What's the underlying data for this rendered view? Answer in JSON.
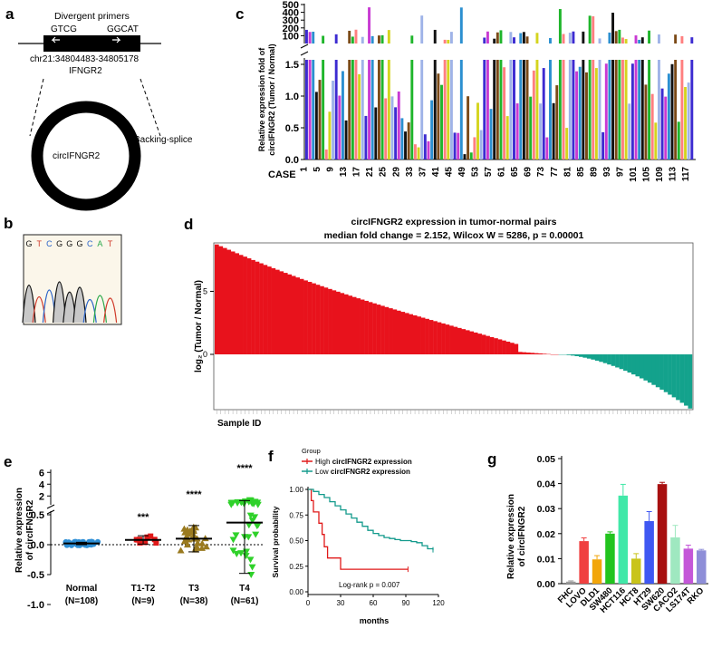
{
  "panels": {
    "a": "a",
    "b": "b",
    "c": "c",
    "d": "d",
    "e": "e",
    "f": "f",
    "g": "g"
  },
  "panel_a": {
    "primers_label": "Divergent   primers",
    "left_primer": "GTCG",
    "right_primer": "GGCAT",
    "coords": "chr21:34804483-34805178",
    "gene": "IFNGR2",
    "circle_label": "circIFNGR2",
    "splice_label": "Backing-splice"
  },
  "panel_b": {
    "sequence": [
      "G",
      "T",
      "C",
      "G",
      "G",
      "G",
      "C",
      "A",
      "T"
    ],
    "seq_colors": [
      "#111111",
      "#d03a2a",
      "#2a63c8",
      "#111111",
      "#111111",
      "#111111",
      "#2a63c8",
      "#2aa84a",
      "#d03a2a"
    ]
  },
  "chart_data": [
    {
      "id": "c",
      "type": "bar",
      "title": "",
      "xlabel": "CASE",
      "ylabel": "Relative expression fold of circIFNGR2 (Tumor / Normal)",
      "ylim_low": [
        0,
        1.5
      ],
      "ylim_high": [
        0,
        500
      ],
      "yticks_low": [
        "0.0",
        "0.5",
        "1.0",
        "1.5"
      ],
      "yticks_high": [
        "100",
        "200",
        "300",
        "400",
        "500"
      ],
      "xticks": [
        "1",
        "5",
        "9",
        "13",
        "17",
        "21",
        "25",
        "29",
        "33",
        "37",
        "41",
        "45",
        "49",
        "53",
        "57",
        "61",
        "65",
        "69",
        "73",
        "77",
        "81",
        "85",
        "89",
        "93",
        "97",
        "101",
        "105",
        "109",
        "113",
        "117"
      ],
      "n_cases": 118,
      "palette": [
        "#3c2bd1",
        "#d4d41e",
        "#1fb52b",
        "#7a1f2a",
        "#111111",
        "#c83ad3",
        "#9fb3e8",
        "#f3f08a",
        "#ff7f7f",
        "#7b4a17",
        "#2b8fd0",
        "#d8d8d8"
      ]
    },
    {
      "id": "d",
      "type": "bar",
      "title": "circIFNGR2 expression in tumor-normal pairs",
      "subtitle": "median fold change = 2.152, Wilcox W = 5286, p = 0.00001",
      "ylabel": "log₂ (Tumor / Normal)",
      "xlabel": "Sample ID",
      "yticks": [
        "5",
        "0"
      ],
      "ylim": [
        -4.5,
        9.2
      ],
      "n_samples": 118,
      "max_value": 8.7,
      "min_value": -4.3,
      "n_positive": 84,
      "colors": {
        "positive": "#e8121c",
        "negative": "#13a28c"
      }
    },
    {
      "id": "e",
      "type": "scatter",
      "ylabel": "Relative expression of circIFNGR2",
      "yticks_low": [
        "-1.0",
        "-0.5",
        "0.0",
        "0.5"
      ],
      "yticks_high": [
        "2",
        "4",
        "6"
      ],
      "groups": [
        {
          "name": "Normal",
          "n": "(N=108)",
          "mean": 0.02,
          "sd": 0.02,
          "color": "#2e8fd6",
          "significance": ""
        },
        {
          "name": "T1-T2",
          "n": "(N=9)",
          "mean": 0.08,
          "sd": 0.07,
          "color": "#e01919",
          "significance": "***"
        },
        {
          "name": "T3",
          "n": "(N=38)",
          "mean": 0.1,
          "sd": 0.22,
          "color": "#9a7a1f",
          "significance": "****"
        },
        {
          "name": "T4",
          "n": "(N=61)",
          "mean": 0.37,
          "sd": 0.85,
          "color": "#2fd12a",
          "significance": "****"
        }
      ]
    },
    {
      "id": "f",
      "type": "line",
      "legend_title": "Group",
      "series": [
        {
          "name": "High circIFNGR2 expression",
          "prefix": "High ",
          "bold": "circIFNGR2 expression",
          "color": "#e01919",
          "x": [
            0,
            3,
            5,
            8,
            10,
            13,
            15,
            18,
            20,
            25,
            30,
            40,
            50,
            60,
            80,
            92
          ],
          "y": [
            1.0,
            0.89,
            0.78,
            0.78,
            0.67,
            0.56,
            0.44,
            0.33,
            0.33,
            0.33,
            0.22,
            0.22,
            0.22,
            0.22,
            0.22,
            0.22
          ]
        },
        {
          "name": "Low circIFNGR2 expression",
          "prefix": "Low ",
          "bold": "circIFNGR2 expression",
          "color": "#139a8c",
          "x": [
            0,
            5,
            10,
            15,
            20,
            25,
            30,
            35,
            40,
            45,
            50,
            55,
            60,
            65,
            70,
            75,
            80,
            85,
            90,
            95,
            100,
            105,
            110,
            115
          ],
          "y": [
            1.0,
            0.98,
            0.95,
            0.92,
            0.88,
            0.84,
            0.8,
            0.76,
            0.72,
            0.68,
            0.64,
            0.6,
            0.57,
            0.55,
            0.53,
            0.52,
            0.51,
            0.5,
            0.5,
            0.49,
            0.48,
            0.45,
            0.42,
            0.41
          ]
        }
      ],
      "xlabel": "months",
      "ylabel": "Survival probability",
      "xticks": [
        "0",
        "30",
        "60",
        "90",
        "120"
      ],
      "yticks": [
        "0.00",
        "0.25",
        "0.50",
        "0.75",
        "1.00"
      ],
      "xlim": [
        0,
        120
      ],
      "ylim": [
        0,
        1
      ],
      "annotation": "Log-rank p = 0.007"
    },
    {
      "id": "g",
      "type": "bar",
      "ylabel": "Relative expression of circIFNGR2",
      "categories": [
        "FHC",
        "LOVO",
        "DLD1",
        "SW480",
        "HCT116",
        "HCT8",
        "HT29",
        "SW620",
        "CACO2",
        "LS174T",
        "RKO"
      ],
      "values": [
        0.0008,
        0.017,
        0.0097,
        0.02,
        0.0352,
        0.01,
        0.025,
        0.0398,
        0.0185,
        0.014,
        0.0133
      ],
      "errors": [
        0.0003,
        0.0013,
        0.0015,
        0.0007,
        0.0045,
        0.002,
        0.0038,
        0.0007,
        0.0048,
        0.0014,
        0.0004
      ],
      "colors": [
        "#9b9b9b",
        "#f04040",
        "#f2a60a",
        "#22c41e",
        "#41e8a8",
        "#c9c41a",
        "#3f58f2",
        "#a80f0f",
        "#9fe8c0",
        "#c457d8",
        "#8e8ed8"
      ],
      "yticks": [
        "0.00",
        "0.01",
        "0.02",
        "0.03",
        "0.04",
        "0.05"
      ],
      "ylim": [
        0,
        0.05
      ]
    }
  ]
}
